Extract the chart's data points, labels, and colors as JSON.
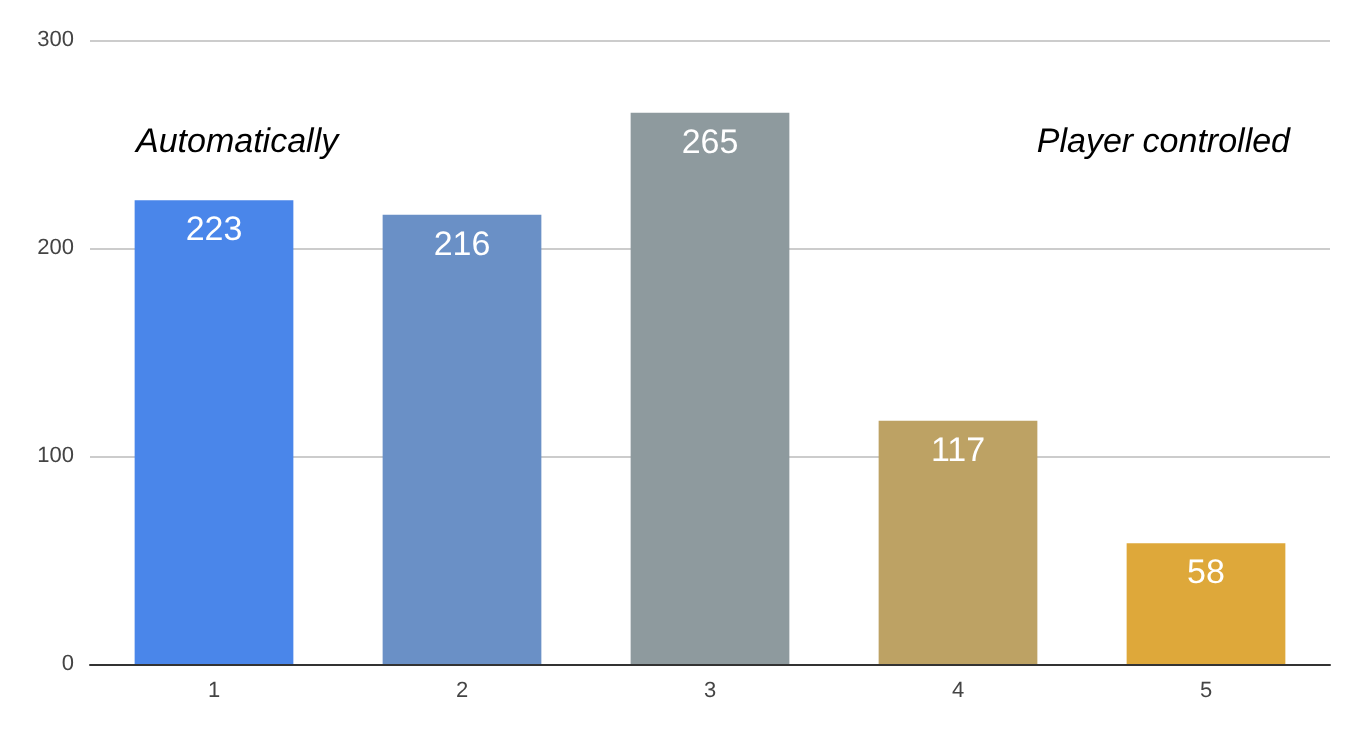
{
  "chart_data": {
    "type": "bar",
    "categories": [
      "1",
      "2",
      "3",
      "4",
      "5"
    ],
    "values": [
      223,
      216,
      265,
      117,
      58
    ],
    "colors": [
      "#4a86ea",
      "#6a90c6",
      "#8e9a9e",
      "#bda264",
      "#dea83a"
    ],
    "ylim": [
      0,
      300
    ],
    "yticks": [
      0,
      100,
      200,
      300
    ],
    "grid": "y",
    "data_labels": true,
    "annotations": [
      "Automatically",
      "Player controlled"
    ]
  }
}
